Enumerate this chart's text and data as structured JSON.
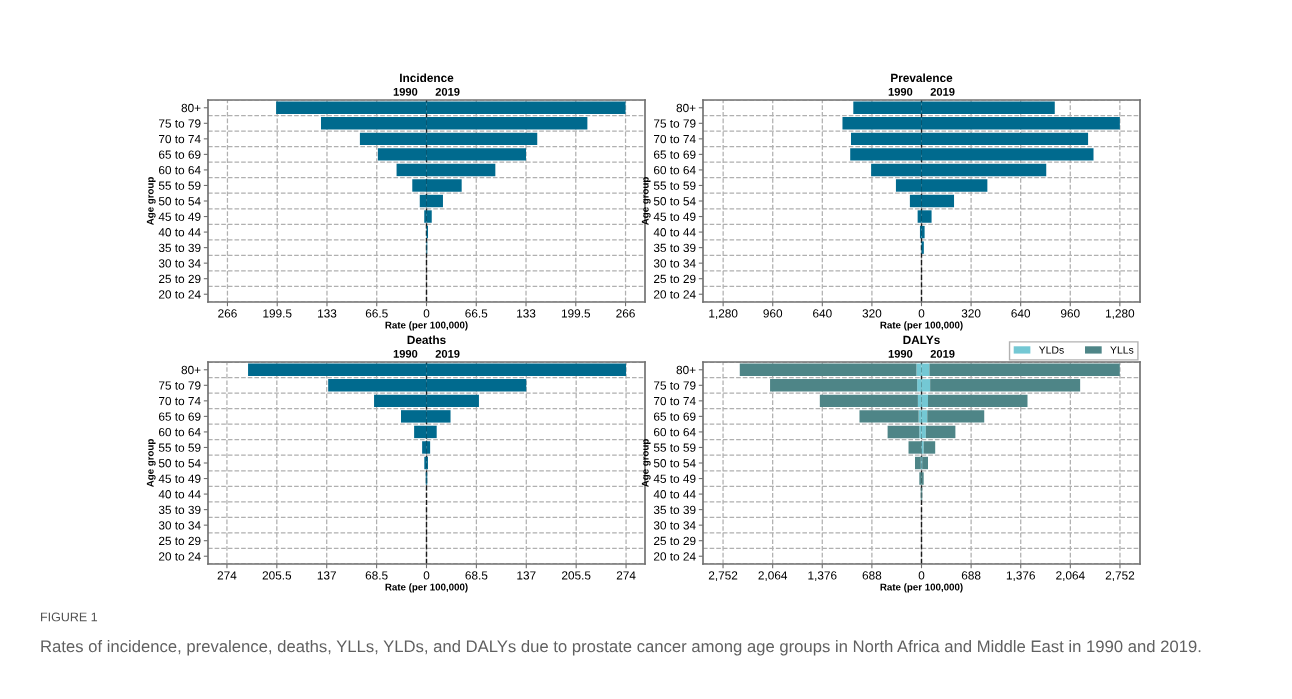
{
  "chart_data": [
    {
      "type": "bar",
      "orientation": "horizontal",
      "stacked": true,
      "title": "Incidence",
      "xlabel": "Rate (per 100,000)",
      "ylabel": "Age group",
      "annotations": [
        "1990",
        "2019"
      ],
      "categories": [
        "80+",
        "75 to 79",
        "70 to 74",
        "65 to 69",
        "60 to 64",
        "55 to 59",
        "50 to 54",
        "45 to 49",
        "40 to 44",
        "35 to 39",
        "30 to 34",
        "25 to 29",
        "20 to 24"
      ],
      "series": [
        {
          "color": "#006a8e",
          "values": [
            -201,
            -141,
            -89,
            -65,
            -40,
            -19,
            -9,
            -3,
            null,
            0,
            0,
            0,
            0
          ]
        },
        {
          "color": "#006a8e",
          "values": [
            266,
            215,
            148,
            133,
            92,
            47,
            22,
            7,
            2,
            1,
            0,
            0,
            0
          ]
        }
      ],
      "xlim": [
        -292,
        292
      ],
      "xticks": [
        {
          "value": -266,
          "label": "266"
        },
        {
          "value": -199.5,
          "label": "199.5"
        },
        {
          "value": -133,
          "label": "133"
        },
        {
          "value": -66.5,
          "label": "66.5"
        },
        0,
        66.5,
        133,
        199.5,
        266
      ],
      "ref_lines": [
        {
          "axis": "x",
          "value": 0,
          "color": "#1a1a1a",
          "line_style": "dashed"
        }
      ],
      "grid": true,
      "legend": false
    },
    {
      "type": "bar",
      "orientation": "horizontal",
      "stacked": true,
      "title": "Prevalence",
      "xlabel": "Rate (per 100,000)",
      "ylabel": "Age group",
      "annotations": [
        "1990",
        "2019"
      ],
      "categories": [
        "80+",
        "75 to 79",
        "70 to 74",
        "65 to 69",
        "60 to 64",
        "55 to 59",
        "50 to 54",
        "45 to 49",
        "40 to 44",
        "35 to 39",
        "30 to 34",
        "25 to 29",
        "20 to 24"
      ],
      "series": [
        {
          "color": "#006a8e",
          "values": [
            -440,
            -510,
            -455,
            -460,
            -325,
            -165,
            -75,
            -25,
            -10,
            null,
            0,
            0,
            0
          ]
        },
        {
          "color": "#006a8e",
          "values": [
            860,
            1280,
            1075,
            1110,
            805,
            425,
            210,
            65,
            20,
            15,
            0,
            0,
            0
          ]
        }
      ],
      "xlim": [
        -1410,
        1410
      ],
      "xticks": [
        {
          "value": -1280,
          "label": "1,280"
        },
        {
          "value": -960,
          "label": "960"
        },
        {
          "value": -640,
          "label": "640"
        },
        {
          "value": -320,
          "label": "320"
        },
        0,
        320,
        640,
        960,
        {
          "value": 1280,
          "label": "1,280"
        }
      ],
      "ref_lines": [
        {
          "axis": "x",
          "value": 0,
          "color": "#1a1a1a",
          "line_style": "dashed"
        }
      ],
      "grid": true,
      "legend": false
    },
    {
      "type": "bar",
      "orientation": "horizontal",
      "stacked": true,
      "title": "Deaths",
      "xlabel": "Rate (per 100,000)",
      "ylabel": "Age group",
      "annotations": [
        "1990",
        "2019"
      ],
      "categories": [
        "80+",
        "75 to 79",
        "70 to 74",
        "65 to 69",
        "60 to 64",
        "55 to 59",
        "50 to 54",
        "45 to 49",
        "40 to 44",
        "35 to 39",
        "30 to 34",
        "25 to 29",
        "20 to 24"
      ],
      "series": [
        {
          "color": "#006a8e",
          "values": [
            -245,
            -135,
            -72,
            -35,
            -17,
            -6,
            -3,
            -1,
            0,
            0,
            0,
            0,
            0
          ]
        },
        {
          "color": "#006a8e",
          "values": [
            274,
            137,
            72,
            33,
            14,
            5,
            2,
            1,
            0,
            0,
            0,
            0,
            0
          ]
        }
      ],
      "xlim": [
        -300,
        300
      ],
      "xticks": [
        {
          "value": -274,
          "label": "274"
        },
        {
          "value": -205.5,
          "label": "205.5"
        },
        {
          "value": -137,
          "label": "137"
        },
        {
          "value": -68.5,
          "label": "68.5"
        },
        0,
        68.5,
        137,
        205.5,
        274
      ],
      "ref_lines": [
        {
          "axis": "x",
          "value": 0,
          "color": "#1a1a1a",
          "line_style": "dashed"
        }
      ],
      "grid": true,
      "legend": false
    },
    {
      "type": "bar",
      "orientation": "horizontal",
      "stacked": true,
      "title": "DALYs",
      "xlabel": "Rate (per 100,000)",
      "ylabel": "Age group",
      "annotations": [
        "1990",
        "2019",
        "FIGURE 1",
        "Rates of incidence, prevalence, deaths, YLLs, YLDs, and DALYs due to prostate cancer among age groups in North Africa and Middle East in 1990 and 2019."
      ],
      "categories": [
        "80+",
        "75 to 79",
        "70 to 74",
        "65 to 69",
        "60 to 64",
        "55 to 59",
        "50 to 54",
        "45 to 49",
        "40 to 44",
        "35 to 39",
        "30 to 34",
        "25 to 29",
        "20 to 24"
      ],
      "series": [
        {
          "color": "#74c8d4",
          "values": [
            -70,
            -60,
            -50,
            -40,
            -30,
            null,
            -10,
            0,
            0,
            0,
            0,
            0,
            0
          ]
        },
        {
          "color": "#4e8587",
          "values": [
            -2450,
            -2040,
            -1360,
            -820,
            -440,
            -180,
            -80,
            -30,
            -10,
            0,
            0,
            0,
            0
          ]
        },
        {
          "name": "YLDs",
          "color": "#74c8d4",
          "values": [
            110,
            120,
            90,
            80,
            60,
            30,
            10,
            0,
            0,
            0,
            0,
            0,
            0
          ]
        },
        {
          "name": "YLLs",
          "color": "#4e8587",
          "values": [
            2640,
            2080,
            1380,
            790,
            410,
            160,
            80,
            30,
            10,
            0,
            0,
            0,
            0
          ]
        }
      ],
      "xlim": [
        -3030,
        3030
      ],
      "xticks": [
        {
          "value": -2752,
          "label": "2,752"
        },
        {
          "value": -2064,
          "label": "2,064"
        },
        {
          "value": -1376,
          "label": "1,376"
        },
        {
          "value": -688,
          "label": "688"
        },
        0,
        688,
        {
          "value": 1376,
          "label": "1,376"
        },
        {
          "value": 2064,
          "label": "2,064"
        },
        {
          "value": 2752,
          "label": "2,752"
        }
      ],
      "ref_lines": [
        {
          "axis": "x",
          "value": 0,
          "color": "#1a1a1a",
          "line_style": "dashed"
        }
      ],
      "grid": true,
      "legend": "top right"
    }
  ]
}
